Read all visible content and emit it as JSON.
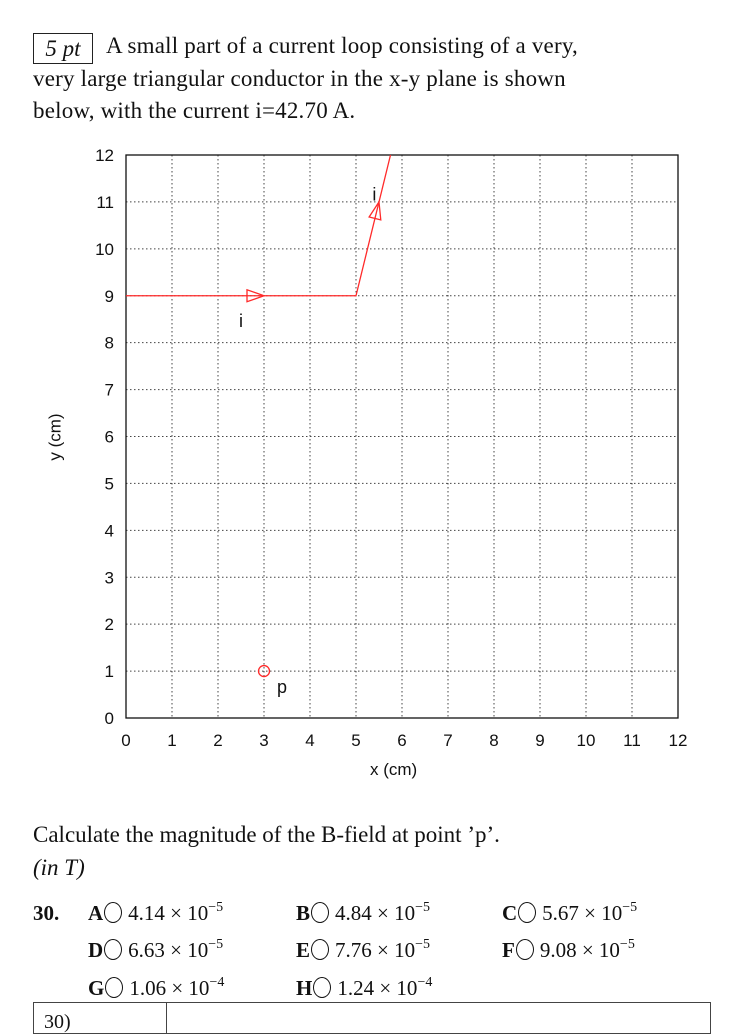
{
  "problem": {
    "points": "5 pt",
    "lines": [
      "A small part of a current loop consisting of a very,",
      "very large triangular conductor in the x-y plane is shown",
      "below, with the current i=42.70 A."
    ]
  },
  "diagram": {
    "xlabel": "x (cm)",
    "ylabel": "y (cm)",
    "xlim": [
      0,
      12
    ],
    "ylim": [
      0,
      12
    ],
    "xticks": [
      "0",
      "1",
      "2",
      "3",
      "4",
      "5",
      "6",
      "7",
      "8",
      "9",
      "10",
      "11",
      "12"
    ],
    "yticks": [
      "0",
      "1",
      "2",
      "3",
      "4",
      "5",
      "6",
      "7",
      "8",
      "9",
      "10",
      "11",
      "12"
    ],
    "grid": true,
    "conductor_points": [
      [
        0,
        9
      ],
      [
        5,
        9
      ],
      [
        5.75,
        12
      ]
    ],
    "current_label": "i",
    "current_labels_at": [
      [
        2.5,
        8.5
      ],
      [
        5.4,
        11.2
      ]
    ],
    "point": {
      "label": "p",
      "x": 3,
      "y": 1
    },
    "color": "#ff2a2a"
  },
  "question": {
    "text": "Calculate the magnitude of the B-field at point ’p’.",
    "units": "(in T)",
    "number": "30.",
    "options": [
      {
        "letter": "A",
        "mantissa": "4.14",
        "exp": "−5"
      },
      {
        "letter": "B",
        "mantissa": "4.84",
        "exp": "−5"
      },
      {
        "letter": "C",
        "mantissa": "5.67",
        "exp": "−5"
      },
      {
        "letter": "D",
        "mantissa": "6.63",
        "exp": "−5"
      },
      {
        "letter": "E",
        "mantissa": "7.76",
        "exp": "−5"
      },
      {
        "letter": "F",
        "mantissa": "9.08",
        "exp": "−5"
      },
      {
        "letter": "G",
        "mantissa": "1.06",
        "exp": "−4"
      },
      {
        "letter": "H",
        "mantissa": "1.24",
        "exp": "−4"
      }
    ]
  },
  "answer_table": {
    "label": "30)"
  }
}
